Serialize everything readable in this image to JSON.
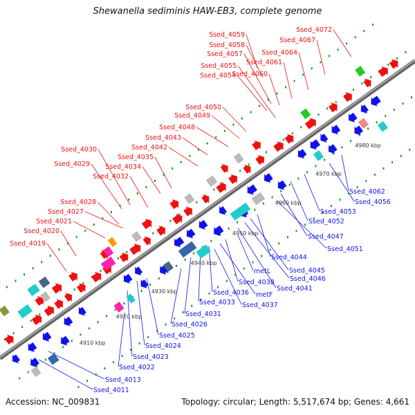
{
  "title": "Shewanella sediminis HAW-EB3, complete genome",
  "footer": {
    "accession": "Accession: NC_009831",
    "topology": "Topology: circular; Length: 5,517,674 bp; Genes: 4,661"
  },
  "colors": {
    "forward": "#ee1111",
    "reverse": "#1111ee",
    "backbone": "#888888",
    "ticks": "#119911"
  },
  "kbp_marks": [
    "4910 kbp",
    "4920 kbp",
    "4930 kbp",
    "4940 kbp",
    "4950 kbp",
    "4960 kbp",
    "4970 kbp",
    "4980 kbp"
  ],
  "top_labels": [
    "Ssed_4072",
    "Ssed_4067",
    "Ssed_4064",
    "Ssed_4061",
    "Ssed_4060",
    "Ssed_4059",
    "Ssed_4058",
    "Ssed_4057",
    "Ssed_4055",
    "Ssed_4054",
    "Ssed_4050",
    "Ssed_4049",
    "Ssed_4048",
    "Ssed_4043",
    "Ssed_4042",
    "Ssed_4035",
    "Ssed_4034",
    "Ssed_4032",
    "Ssed_4030",
    "Ssed_4029",
    "Ssed_4028",
    "Ssed_4027",
    "Ssed_4021",
    "Ssed_4020",
    "Ssed_4019"
  ],
  "bottom_labels": [
    "Ssed_4062",
    "Ssed_4056",
    "Ssed_4053",
    "Ssed_4052",
    "Ssed_4047",
    "Ssed_4051",
    "Ssed_4044",
    "Ssed_4045",
    "Ssed_4046",
    "Ssed_4041",
    "metL",
    "Ssed_4038",
    "metF",
    "Ssed_4036",
    "Ssed_4037",
    "Ssed_4033",
    "Ssed_4031",
    "Ssed_4026",
    "Ssed_4025",
    "Ssed_4024",
    "Ssed_4023",
    "Ssed_4022",
    "Ssed_4013",
    "Ssed_4011"
  ]
}
